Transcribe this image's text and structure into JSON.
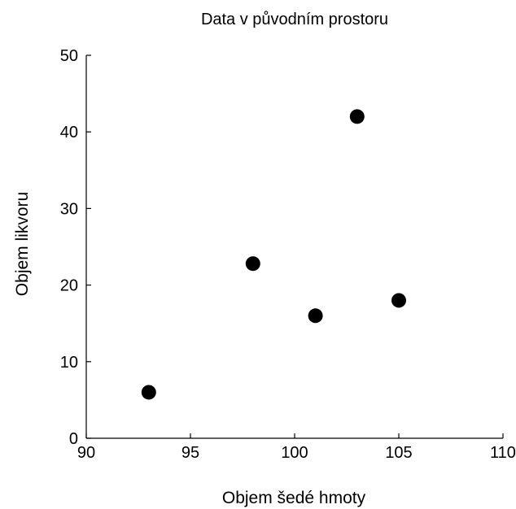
{
  "chart_data": {
    "type": "scatter",
    "title": "Data v původním prostoru",
    "xlabel": "Objem šedé hmoty",
    "ylabel": "Objem likvoru",
    "xlim": [
      90,
      110
    ],
    "ylim": [
      0,
      50
    ],
    "xticks": [
      90,
      95,
      100,
      105,
      110
    ],
    "yticks": [
      0,
      10,
      20,
      30,
      40,
      50
    ],
    "grid": false,
    "colors": {
      "marker": "#000000",
      "axis": "#000000",
      "background": "#ffffff"
    },
    "series": [
      {
        "points": [
          {
            "x": 93,
            "y": 6
          },
          {
            "x": 98,
            "y": 22.8
          },
          {
            "x": 101,
            "y": 16
          },
          {
            "x": 103,
            "y": 42
          },
          {
            "x": 105,
            "y": 18
          }
        ]
      }
    ]
  }
}
